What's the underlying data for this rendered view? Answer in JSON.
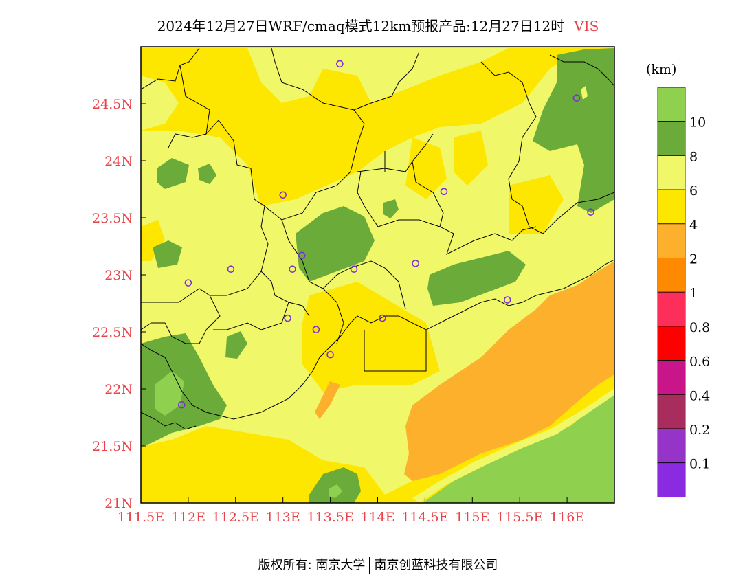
{
  "title": {
    "text": "2024年12月27日WRF/cmaq模式12km预报产品:12月27日12时",
    "variable": "VIS"
  },
  "colorbar": {
    "unit": "(km)",
    "levels": [
      {
        "label": "",
        "color": "#8fd14f"
      },
      {
        "label": "10",
        "color": "#6aab3a"
      },
      {
        "label": "8",
        "color": "#f0f86a"
      },
      {
        "label": "6",
        "color": "#fde600"
      },
      {
        "label": "4",
        "color": "#fcb02c"
      },
      {
        "label": "2",
        "color": "#fd8a00"
      },
      {
        "label": "1",
        "color": "#fd2e5a"
      },
      {
        "label": "0.8",
        "color": "#fd0000"
      },
      {
        "label": "0.6",
        "color": "#c8158a"
      },
      {
        "label": "0.4",
        "color": "#a82d5d"
      },
      {
        "label": "0.2",
        "color": "#9633c8"
      },
      {
        "label": "0.1",
        "color": "#8a2be2"
      }
    ]
  },
  "axes": {
    "x_ticks": [
      "111.5E",
      "112E",
      "112.5E",
      "113E",
      "113.5E",
      "114E",
      "114.5E",
      "115E",
      "115.5E",
      "116E"
    ],
    "y_ticks": [
      "24.5N",
      "24N",
      "23.5N",
      "23N",
      "22.5N",
      "22N",
      "21.5N",
      "21N"
    ],
    "lon_range": [
      111.5,
      116.5
    ],
    "lat_range": [
      21,
      25
    ]
  },
  "stations": [
    [
      113.6,
      24.85
    ],
    [
      116.1,
      24.55
    ],
    [
      114.7,
      23.73
    ],
    [
      113.0,
      23.7
    ],
    [
      116.25,
      23.55
    ],
    [
      113.2,
      23.17
    ],
    [
      112.45,
      23.05
    ],
    [
      113.1,
      23.05
    ],
    [
      113.75,
      23.05
    ],
    [
      114.4,
      23.1
    ],
    [
      112.0,
      22.93
    ],
    [
      115.37,
      22.78
    ],
    [
      113.05,
      22.62
    ],
    [
      114.05,
      22.62
    ],
    [
      113.35,
      22.52
    ],
    [
      113.5,
      22.3
    ],
    [
      111.93,
      21.86
    ]
  ],
  "footer": {
    "copyright": "版权所有: 南京大学",
    "company": "南京创蓝科技有限公司"
  }
}
